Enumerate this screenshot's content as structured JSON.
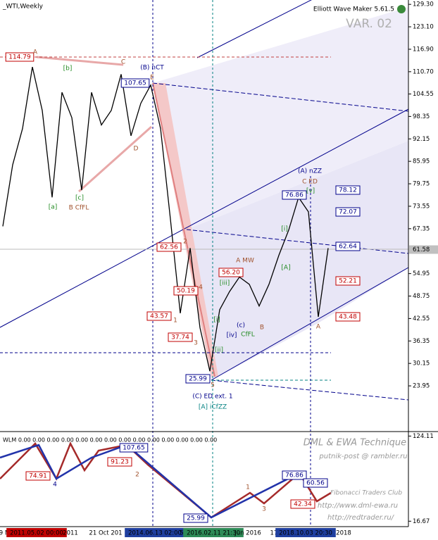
{
  "header": {
    "symbol": "_WTI,Weekly",
    "tool": "Elliott Wave Maker 5.61.5",
    "variant": "VAR. 02"
  },
  "chart_data": {
    "type": "line",
    "color": "#000000",
    "ylim": [
      12.3,
      130.5
    ],
    "yticks": [
      {
        "value": 129.3,
        "label": "129.30"
      },
      {
        "value": 123.1,
        "label": "123.10"
      },
      {
        "value": 116.9,
        "label": "116.90"
      },
      {
        "value": 110.7,
        "label": "110.70"
      },
      104.55,
      98.35,
      92.15,
      85.95,
      79.75,
      73.55,
      67.35,
      54.95,
      48.75,
      42.55,
      36.35,
      30.15,
      23.95
    ],
    "current_price": {
      "value": 61.58,
      "label": "61.58"
    },
    "values": [
      68,
      85,
      95,
      112,
      100,
      76,
      105,
      98,
      78,
      105,
      96,
      100,
      110,
      93,
      102,
      107,
      95,
      70,
      44,
      62,
      40,
      28,
      45,
      50,
      54,
      52,
      46,
      52,
      60,
      67,
      76,
      72,
      43,
      62
    ]
  },
  "annotations": [
    "114.79",
    "A",
    "[b]",
    "[a]",
    "[c]",
    "B CfFL",
    "C",
    "(B) nCT",
    "107.65",
    "E",
    "D",
    "62.56",
    "2",
    "43.57",
    "1",
    "50.19",
    "4",
    "37.74",
    "3",
    "25.99",
    "5",
    "(C) ED ext. 1",
    "[A] iCfZZ",
    "[i]",
    "[ii]",
    "[iii]",
    "[iv]",
    "(c)",
    "CfFL",
    "A MW",
    "56.20",
    "B",
    "[i]",
    "[A]",
    "(A) nZZ",
    "C ED",
    "76.86",
    "[v]",
    "78.12",
    "72.07",
    "62.64",
    "52.21",
    "43.48",
    "A"
  ],
  "indicator": {
    "title": "WLM 0.00 0.00 0.00 0.00 0.00 0.00 0.00 0.00 0.00 0.00 0.00 0.00 0.00 0.00",
    "ylim": [
      12.5,
      128
    ],
    "yticks": [
      124.11,
      16.67
    ],
    "labels": [
      "74.91",
      "4",
      "91.23",
      "2",
      "107.65",
      "25.99",
      "76.86",
      "60.56",
      "42.34",
      "1",
      "3"
    ],
    "watermark": [
      "DML & EWA Technique",
      "putnik-post @ rambler.ru",
      "Fibonacci Traders Club",
      "http://www.dml-ewa.ru",
      "http://redtrader.ru/"
    ]
  },
  "time_axis": [
    "9 N",
    "2011.05.02 00:00",
    "2011",
    "21 Oct 201",
    "2014.06.13 02:00",
    "5",
    "2016.02.11 21:30",
    "Jun 2016",
    "17 S",
    "2018.10.03 20:30",
    "2018"
  ]
}
